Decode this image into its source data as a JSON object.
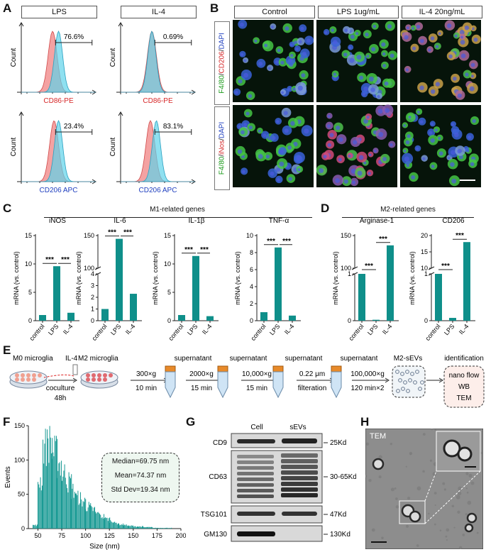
{
  "panels": {
    "A": "A",
    "B": "B",
    "C": "C",
    "D": "D",
    "E": "E",
    "F": "F",
    "G": "G",
    "H": "H"
  },
  "flow": {
    "titles": [
      "LPS",
      "IL-4"
    ],
    "plots": [
      {
        "pct": "76.6%",
        "xlabel": "CD86-PE",
        "xcolor": "#d62728",
        "ylabel": "Count"
      },
      {
        "pct": "0.69%",
        "xlabel": "CD86-PE",
        "xcolor": "#d62728",
        "ylabel": "Count"
      },
      {
        "pct": "23.4%",
        "xlabel": "CD206 APC",
        "xcolor": "#1f3fbf",
        "ylabel": "Count"
      },
      {
        "pct": "83.1%",
        "xlabel": "CD206 APC",
        "xcolor": "#1f3fbf",
        "ylabel": "Count"
      }
    ],
    "colors": {
      "control": "#f07b7b",
      "treated": "#5fd3ea"
    }
  },
  "micro": {
    "columns": [
      "Control",
      "LPS 1ug/mL",
      "IL-4 20ng/mL"
    ],
    "row1": {
      "a": "F4/80",
      "b": "/",
      "c": "CD206",
      "d": "/",
      "e": "DAPI"
    },
    "row2": {
      "a": "F4/80",
      "b": "/",
      "c": "iNos",
      "d": "/",
      "e": "DAPI"
    }
  },
  "qpcr": {
    "groupC": "M1-related genes",
    "groupD": "M2-related genes",
    "ylabel": "mRNA (vs. control)",
    "categories": [
      "control",
      "LPS",
      "IL-4"
    ],
    "sig": "***",
    "color": "#0f8f8a",
    "genes": [
      {
        "name": "iNOS",
        "ticks": [
          "0",
          "5",
          "10",
          "15"
        ]
      },
      {
        "name": "IL-6",
        "ticks_top": [
          "100",
          "150"
        ],
        "ticks": [
          "0",
          "1",
          "2",
          "3",
          "4"
        ]
      },
      {
        "name": "IL-1β",
        "ticks": [
          "0",
          "5",
          "10",
          "15"
        ]
      },
      {
        "name": "TNF-α",
        "ticks": [
          "0",
          "2",
          "4",
          "6",
          "8",
          "10"
        ]
      },
      {
        "name": "Arginase-1",
        "ticks_top": [
          "100",
          "150"
        ],
        "ticks": [
          "0",
          "1"
        ]
      },
      {
        "name": "CD206",
        "ticks_top": [
          "10",
          "15",
          "20"
        ],
        "ticks": [
          "0",
          "1"
        ]
      }
    ]
  },
  "chart_data": [
    {
      "type": "bar",
      "title": "iNOS",
      "ylabel": "mRNA (vs. control)",
      "categories": [
        "control",
        "LPS",
        "IL-4"
      ],
      "values": [
        1,
        9.6,
        1.4
      ],
      "ylim": [
        0,
        15
      ]
    },
    {
      "type": "bar",
      "title": "IL-6",
      "ylabel": "mRNA (vs. control)",
      "categories": [
        "control",
        "LPS",
        "IL-4"
      ],
      "values": [
        1,
        145,
        2.3
      ],
      "ylim": [
        0,
        150
      ]
    },
    {
      "type": "bar",
      "title": "IL-1β",
      "ylabel": "mRNA (vs. control)",
      "categories": [
        "control",
        "LPS",
        "IL-4"
      ],
      "values": [
        1,
        11.4,
        0.8
      ],
      "ylim": [
        0,
        15
      ]
    },
    {
      "type": "bar",
      "title": "TNF-α",
      "ylabel": "mRNA (vs. control)",
      "categories": [
        "control",
        "LPS",
        "IL-4"
      ],
      "values": [
        1,
        8.6,
        0.6
      ],
      "ylim": [
        0,
        10
      ]
    },
    {
      "type": "bar",
      "title": "Arginase-1",
      "ylabel": "mRNA (vs. control)",
      "categories": [
        "control",
        "LPS",
        "IL-4"
      ],
      "values": [
        1,
        0.02,
        135
      ],
      "ylim": [
        0,
        150
      ]
    },
    {
      "type": "bar",
      "title": "CD206",
      "ylabel": "mRNA (vs. control)",
      "categories": [
        "control",
        "LPS",
        "IL-4"
      ],
      "values": [
        1,
        0.06,
        18
      ],
      "ylim": [
        0,
        20
      ]
    },
    {
      "type": "bar",
      "title": "",
      "xlabel": "Size (nm)",
      "ylabel": "Events",
      "x_range": [
        40,
        200
      ],
      "ylim": [
        0,
        150
      ],
      "x": [
        45,
        50,
        55,
        60,
        65,
        70,
        75,
        80,
        85,
        90,
        95,
        100,
        105,
        110,
        115,
        120,
        125,
        130,
        135,
        140,
        145,
        150,
        155,
        160,
        165,
        170,
        175,
        180,
        190,
        200
      ],
      "values": [
        5,
        70,
        120,
        125,
        110,
        95,
        80,
        68,
        55,
        45,
        40,
        32,
        28,
        22,
        18,
        14,
        11,
        8,
        6,
        5,
        4,
        3,
        3,
        2,
        2,
        1,
        1,
        1,
        0,
        0
      ]
    }
  ],
  "hist": {
    "xlabel": "Size (nm)",
    "ylabel": "Events",
    "xticks": [
      "50",
      "75",
      "100",
      "125",
      "150",
      "175",
      "200"
    ],
    "yticks": [
      "0",
      "50",
      "100",
      "150"
    ],
    "stats": [
      "Median=69.75 nm",
      "Mean=74.37 nm",
      "Std Dev=19.34 nm"
    ]
  },
  "workflow": {
    "m0": "M0 microglia",
    "il4": "IL-4",
    "coculture": "coculture",
    "time": "48h",
    "m2": "M2 microglia",
    "steps": [
      {
        "top": "",
        "a": "300×g",
        "b": "10 min"
      },
      {
        "top": "supernatant",
        "a": "2000×g",
        "b": "15 min"
      },
      {
        "top": "supernatant",
        "a": "10,000×g",
        "b": "15 min"
      },
      {
        "top": "supernatant",
        "a": "0.22 μm",
        "b": "filteration"
      },
      {
        "top": "supernatant",
        "a": "100,000×g",
        "b": "120 min×2"
      }
    ],
    "sevs": "M2-sEVs",
    "ident": "identification",
    "methods": [
      "nano flow",
      "WB",
      "TEM"
    ]
  },
  "wb": {
    "cols": [
      "Cell",
      "sEVs"
    ],
    "rows": [
      "CD9",
      "CD63",
      "TSG101",
      "GM130"
    ],
    "kd": [
      "25Kd",
      "30-65Kd",
      "47Kd",
      "130Kd"
    ]
  },
  "tem": {
    "label": "TEM"
  }
}
